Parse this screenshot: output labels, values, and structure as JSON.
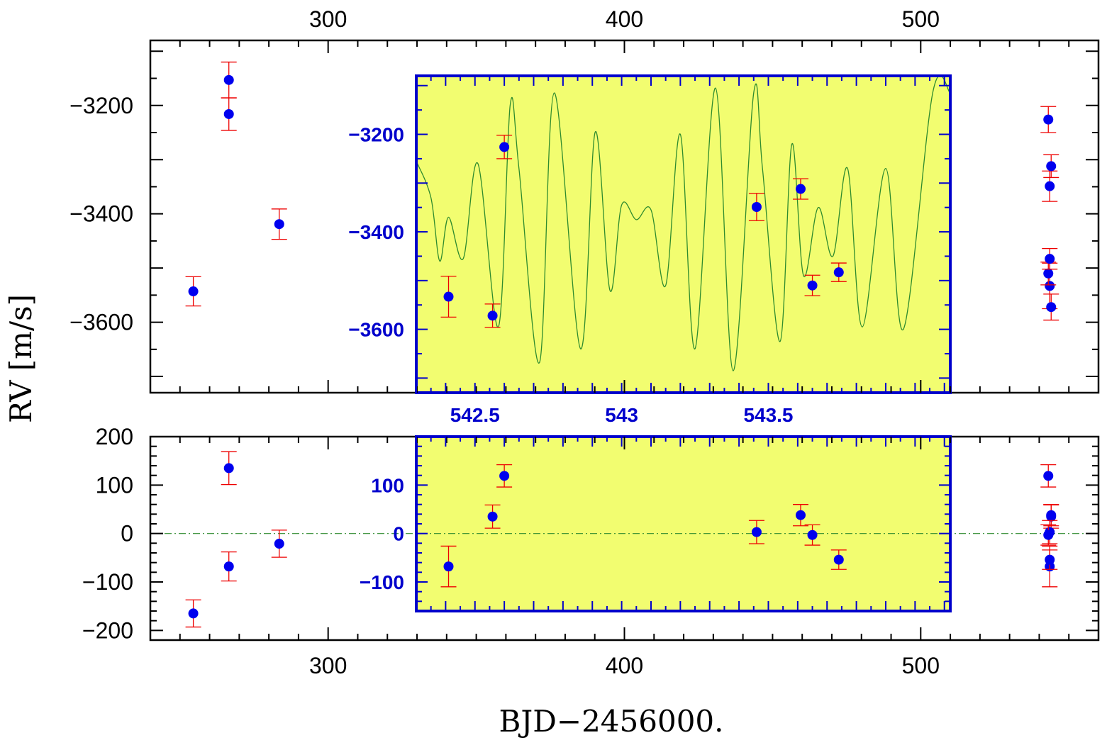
{
  "chart_data": {
    "type": "scatter",
    "description": "Radial velocity measurements with Keplerian model fit (top) and residuals (bottom), with zoomed inset panels",
    "xlabel": "BJD−2456000.",
    "ylabel": "RV [m/s]",
    "x_range": [
      240,
      560
    ],
    "main_panel": {
      "ylim": [
        -3730,
        -3080
      ],
      "y_ticks": [
        -3600,
        -3400,
        -3200
      ],
      "y_tick_labels": [
        "−3600",
        "−3400",
        "−3200"
      ],
      "x_ticks": [
        300,
        400,
        500
      ],
      "x_tick_labels": [
        "300",
        "400",
        "500"
      ],
      "points": [
        {
          "x": 254.5,
          "y": -3543,
          "err": 27
        },
        {
          "x": 266.5,
          "y": -3153,
          "err": 33
        },
        {
          "x": 266.5,
          "y": -3216,
          "err": 30
        },
        {
          "x": 283.5,
          "y": -3419,
          "err": 28
        },
        {
          "x": 542.41,
          "y": -3533,
          "err": 42
        },
        {
          "x": 542.56,
          "y": -3572,
          "err": 24
        },
        {
          "x": 542.6,
          "y": -3226,
          "err": 24
        },
        {
          "x": 543.46,
          "y": -3349,
          "err": 28
        },
        {
          "x": 543.61,
          "y": -3312,
          "err": 21
        },
        {
          "x": 543.65,
          "y": -3510,
          "err": 21
        },
        {
          "x": 543.74,
          "y": -3483,
          "err": 19
        }
      ]
    },
    "inset_main": {
      "x_range": [
        542.3,
        544.12
      ],
      "ylim": [
        -3730,
        -3080
      ],
      "x_ticks": [
        542.5,
        543,
        543.5
      ],
      "x_tick_labels": [
        "542.5",
        "543",
        "543.5"
      ],
      "y_ticks": [
        -3600,
        -3400,
        -3200
      ],
      "y_tick_labels": [
        "−3600",
        "−3400",
        "−3200"
      ],
      "background": "#f2fd70",
      "frame_color": "#0000cc"
    },
    "residual_panel": {
      "ylim": [
        -220,
        200
      ],
      "y_ticks": [
        -200,
        -100,
        0,
        100,
        200
      ],
      "y_tick_labels": [
        "−200",
        "−100",
        "0",
        "100",
        "200"
      ],
      "x_ticks": [
        300,
        400,
        500
      ],
      "x_tick_labels": [
        "300",
        "400",
        "500"
      ],
      "zero_line": 0,
      "points": [
        {
          "x": 254.5,
          "y": -165,
          "err": 28
        },
        {
          "x": 266.5,
          "y": 135,
          "err": 34
        },
        {
          "x": 266.5,
          "y": -68,
          "err": 30
        },
        {
          "x": 283.5,
          "y": -21,
          "err": 28
        },
        {
          "x": 542.41,
          "y": -68,
          "err": 42
        },
        {
          "x": 542.56,
          "y": 35,
          "err": 24
        },
        {
          "x": 542.6,
          "y": 119,
          "err": 23
        },
        {
          "x": 543.46,
          "y": 3,
          "err": 24
        },
        {
          "x": 543.61,
          "y": 38,
          "err": 22
        },
        {
          "x": 543.65,
          "y": -3,
          "err": 21
        },
        {
          "x": 543.74,
          "y": -54,
          "err": 20
        }
      ]
    },
    "inset_residual": {
      "x_range": [
        542.3,
        544.12
      ],
      "ylim": [
        -160,
        200
      ],
      "y_ticks": [
        -100,
        0,
        100
      ],
      "y_tick_labels": [
        "−100",
        "0",
        "100"
      ],
      "background": "#f2fd70",
      "frame_color": "#0000cc"
    },
    "model_curve": {
      "name": "Keplerian fit",
      "color": "#2e8b2e",
      "sampled_x": [
        542.3,
        542.35,
        542.38,
        542.41,
        542.46,
        542.51,
        542.58,
        542.62,
        542.65,
        542.72,
        542.77,
        542.86,
        542.91,
        542.96,
        543.0,
        543.05,
        543.1,
        543.15,
        543.2,
        543.25,
        543.32,
        543.38,
        543.45,
        543.48,
        543.54,
        543.58,
        543.62,
        543.67,
        543.72,
        543.77,
        543.82,
        543.9,
        543.96,
        544.06,
        544.12
      ],
      "sampled_y": [
        -3255,
        -3330,
        -3460,
        -3370,
        -3455,
        -3260,
        -3595,
        -3140,
        -3270,
        -3668,
        -3115,
        -3640,
        -3195,
        -3520,
        -3345,
        -3375,
        -3355,
        -3510,
        -3200,
        -3640,
        -3105,
        -3685,
        -3115,
        -3270,
        -3625,
        -3220,
        -3490,
        -3350,
        -3450,
        -3270,
        -3595,
        -3270,
        -3600,
        -3115,
        -3115
      ]
    },
    "colors": {
      "points": "#0000ee",
      "errors": "#ee0000",
      "inset_text": "#0000cc",
      "zero_line": "#2e8b2e"
    }
  }
}
